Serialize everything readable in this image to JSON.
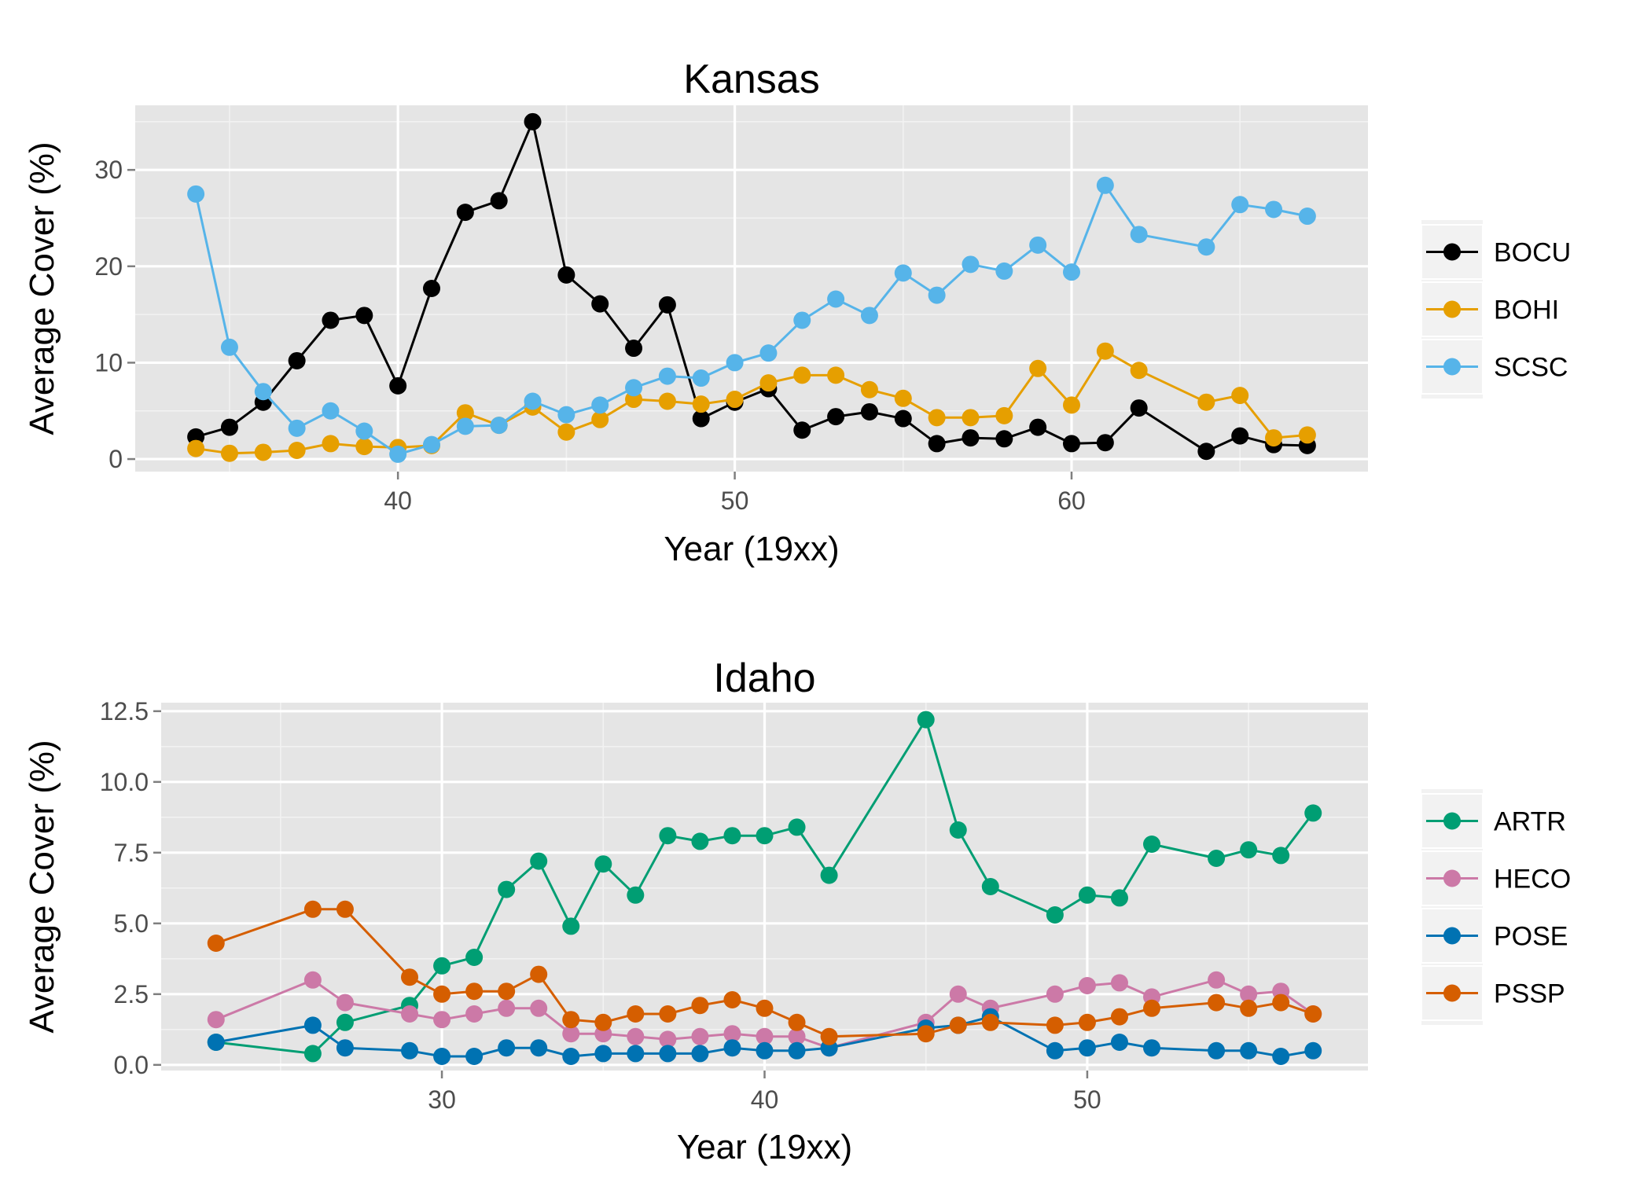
{
  "chart_data": [
    {
      "type": "line",
      "title": "Kansas",
      "xlabel": "Year (19xx)",
      "ylabel": "Average Cover (%)",
      "xlim": [
        32.2,
        68.8
      ],
      "ylim": [
        -1.3,
        36.7
      ],
      "xticks": [
        40,
        50,
        60
      ],
      "yticks": [
        0,
        10,
        20,
        30
      ],
      "xticks_minor": [
        35,
        45,
        55,
        65
      ],
      "yticks_minor": [
        5,
        15,
        25,
        35
      ],
      "grid": true,
      "legend_position": "right",
      "series": [
        {
          "name": "BOCU",
          "color": "#000000",
          "x": [
            34,
            35,
            36,
            37,
            38,
            39,
            40,
            41,
            42,
            43,
            44,
            45,
            46,
            47,
            48,
            49,
            50,
            51,
            52,
            53,
            54,
            55,
            56,
            57,
            58,
            59,
            60,
            61,
            62,
            64,
            65,
            66,
            67
          ],
          "y": [
            2.3,
            3.3,
            5.9,
            10.2,
            14.4,
            14.9,
            7.6,
            17.7,
            25.6,
            26.8,
            35.0,
            19.1,
            16.1,
            11.5,
            16.0,
            4.2,
            5.9,
            7.3,
            3.0,
            4.4,
            4.9,
            4.2,
            1.6,
            2.2,
            2.1,
            3.3,
            1.6,
            1.7,
            5.3,
            0.8,
            2.4,
            1.5,
            1.4
          ]
        },
        {
          "name": "BOHI",
          "color": "#E69F00",
          "x": [
            34,
            35,
            36,
            37,
            38,
            39,
            40,
            41,
            42,
            43,
            44,
            45,
            46,
            47,
            48,
            49,
            50,
            51,
            52,
            53,
            54,
            55,
            56,
            57,
            58,
            59,
            60,
            61,
            62,
            64,
            65,
            66,
            67
          ],
          "y": [
            1.1,
            0.6,
            0.7,
            0.9,
            1.6,
            1.3,
            1.2,
            1.4,
            4.8,
            3.5,
            5.4,
            2.8,
            4.1,
            6.2,
            6.0,
            5.7,
            6.2,
            7.9,
            8.7,
            8.7,
            7.2,
            6.3,
            4.3,
            4.3,
            4.5,
            9.4,
            5.6,
            11.2,
            9.2,
            5.9,
            6.6,
            2.2,
            2.5
          ]
        },
        {
          "name": "SCSC",
          "color": "#56B4E9",
          "x": [
            34,
            35,
            36,
            37,
            38,
            39,
            40,
            41,
            42,
            43,
            44,
            45,
            46,
            47,
            48,
            49,
            50,
            51,
            52,
            53,
            54,
            55,
            56,
            57,
            58,
            59,
            60,
            61,
            62,
            64,
            65,
            66,
            67
          ],
          "y": [
            27.5,
            11.6,
            7.0,
            3.2,
            5.0,
            2.9,
            0.5,
            1.5,
            3.4,
            3.5,
            6.0,
            4.6,
            5.6,
            7.4,
            8.6,
            8.4,
            10.0,
            11.0,
            14.4,
            16.6,
            14.9,
            19.3,
            17.0,
            20.2,
            19.5,
            22.2,
            19.4,
            28.4,
            23.3,
            22.0,
            26.4,
            25.9,
            25.2
          ]
        }
      ]
    },
    {
      "type": "line",
      "title": "Idaho",
      "xlabel": "Year (19xx)",
      "ylabel": "Average Cover (%)",
      "xlim": [
        21.3,
        58.7
      ],
      "ylim": [
        -0.2,
        12.8
      ],
      "xticks": [
        30,
        40,
        50
      ],
      "yticks": [
        0.0,
        2.5,
        5.0,
        7.5,
        10.0,
        12.5
      ],
      "yticks_text": [
        "0.0",
        "2.5",
        "5.0",
        "7.5",
        "10.0",
        "12.5"
      ],
      "xticks_minor": [
        25,
        35,
        45,
        55
      ],
      "yticks_minor": [
        1.25,
        3.75,
        6.25,
        8.75,
        11.25
      ],
      "grid": true,
      "legend_position": "right",
      "series": [
        {
          "name": "ARTR",
          "color": "#009E73",
          "x": [
            23,
            26,
            27,
            29,
            30,
            31,
            32,
            33,
            34,
            35,
            36,
            37,
            38,
            39,
            40,
            41,
            42,
            45,
            46,
            47,
            49,
            50,
            51,
            52,
            54,
            55,
            56,
            57
          ],
          "y": [
            0.8,
            0.4,
            1.5,
            2.1,
            3.5,
            3.8,
            6.2,
            7.2,
            4.9,
            7.1,
            6.0,
            8.1,
            7.9,
            8.1,
            8.1,
            8.4,
            6.7,
            12.2,
            8.3,
            6.3,
            5.3,
            6.0,
            5.9,
            7.8,
            7.3,
            7.6,
            7.4,
            8.9
          ]
        },
        {
          "name": "HECO",
          "color": "#CC79A7",
          "x": [
            23,
            26,
            27,
            29,
            30,
            31,
            32,
            33,
            34,
            35,
            36,
            37,
            38,
            39,
            40,
            41,
            42,
            45,
            46,
            47,
            49,
            50,
            51,
            52,
            54,
            55,
            56,
            57
          ],
          "y": [
            1.6,
            3.0,
            2.2,
            1.8,
            1.6,
            1.8,
            2.0,
            2.0,
            1.1,
            1.1,
            1.0,
            0.9,
            1.0,
            1.1,
            1.0,
            1.0,
            0.6,
            1.5,
            2.5,
            2.0,
            2.5,
            2.8,
            2.9,
            2.4,
            3.0,
            2.5,
            2.6,
            1.8
          ]
        },
        {
          "name": "POSE",
          "color": "#0072B2",
          "x": [
            23,
            26,
            27,
            29,
            30,
            31,
            32,
            33,
            34,
            35,
            36,
            37,
            38,
            39,
            40,
            41,
            42,
            45,
            46,
            47,
            49,
            50,
            51,
            52,
            54,
            55,
            56,
            57
          ],
          "y": [
            0.8,
            1.4,
            0.6,
            0.5,
            0.3,
            0.3,
            0.6,
            0.6,
            0.3,
            0.4,
            0.4,
            0.4,
            0.4,
            0.6,
            0.5,
            0.5,
            0.6,
            1.3,
            1.4,
            1.7,
            0.5,
            0.6,
            0.8,
            0.6,
            0.5,
            0.5,
            0.3,
            0.5
          ]
        },
        {
          "name": "PSSP",
          "color": "#D55E00",
          "x": [
            23,
            26,
            27,
            29,
            30,
            31,
            32,
            33,
            34,
            35,
            36,
            37,
            38,
            39,
            40,
            41,
            42,
            45,
            46,
            47,
            49,
            50,
            51,
            52,
            54,
            55,
            56,
            57
          ],
          "y": [
            4.3,
            5.5,
            5.5,
            3.1,
            2.5,
            2.6,
            2.6,
            3.2,
            1.6,
            1.5,
            1.8,
            1.8,
            2.1,
            2.3,
            2.0,
            1.5,
            1.0,
            1.1,
            1.4,
            1.5,
            1.4,
            1.5,
            1.7,
            2.0,
            2.2,
            2.0,
            2.2,
            1.8
          ]
        }
      ]
    }
  ]
}
